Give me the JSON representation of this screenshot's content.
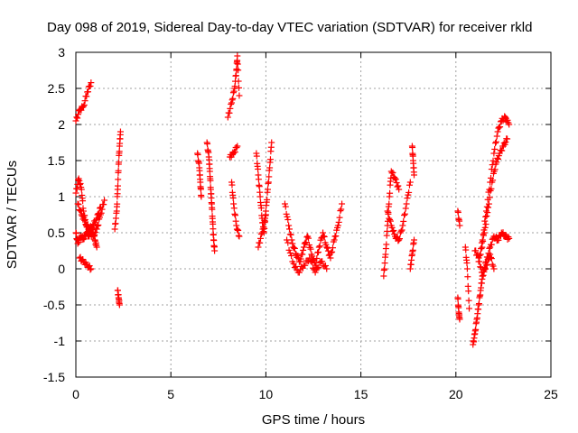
{
  "chart_data": {
    "type": "scatter",
    "title": "Day 098 of 2019, Sidereal Day-to-day VTEC variation (SDTVAR) for receiver rkld",
    "xlabel": "GPS time / hours",
    "ylabel": "SDTVAR / TECUs",
    "xlim": [
      0,
      25
    ],
    "ylim": [
      -1.5,
      3
    ],
    "xticks": [
      0,
      5,
      10,
      15,
      20,
      25
    ],
    "yticks": [
      -1.5,
      -1,
      -0.5,
      0,
      0.5,
      1,
      1.5,
      2,
      2.5,
      3
    ],
    "xtick_labels": [
      "0",
      "5",
      "10",
      "15",
      "20",
      "25"
    ],
    "ytick_labels": [
      "-1.5",
      "-1",
      "-0.5",
      "0",
      "0.5",
      "1",
      "1.5",
      "2",
      "2.5",
      "3"
    ],
    "grid": true,
    "marker": "+",
    "color": "#ff0000",
    "series": [
      {
        "segments": [
          [
            [
              0.0,
              2.05
            ],
            [
              0.2,
              2.2
            ],
            [
              0.4,
              2.25
            ],
            [
              0.6,
              2.45
            ],
            [
              0.8,
              2.58
            ]
          ],
          [
            [
              0.0,
              1.05
            ],
            [
              0.15,
              1.25
            ],
            [
              0.3,
              1.1
            ],
            [
              0.4,
              0.8
            ],
            [
              0.55,
              0.6
            ],
            [
              0.7,
              0.5
            ],
            [
              0.9,
              0.45
            ],
            [
              1.1,
              0.55
            ],
            [
              1.3,
              0.75
            ],
            [
              1.5,
              0.95
            ]
          ],
          [
            [
              0.0,
              0.5
            ],
            [
              0.1,
              0.35
            ],
            [
              0.25,
              0.45
            ],
            [
              0.4,
              0.42
            ],
            [
              0.55,
              0.5
            ],
            [
              0.7,
              0.45
            ],
            [
              0.85,
              0.55
            ],
            [
              1.0,
              0.4
            ],
            [
              1.1,
              0.3
            ]
          ],
          [
            [
              0.2,
              0.15
            ],
            [
              0.4,
              0.1
            ],
            [
              0.6,
              0.05
            ],
            [
              0.8,
              0.0
            ]
          ],
          [
            [
              0.1,
              0.9
            ],
            [
              0.3,
              0.75
            ],
            [
              0.5,
              0.65
            ],
            [
              0.7,
              0.55
            ],
            [
              0.9,
              0.6
            ],
            [
              1.1,
              0.7
            ],
            [
              1.3,
              0.85
            ]
          ],
          [
            [
              2.05,
              0.55
            ],
            [
              2.15,
              0.8
            ],
            [
              2.2,
              1.1
            ],
            [
              2.25,
              1.45
            ],
            [
              2.3,
              1.7
            ],
            [
              2.35,
              1.9
            ]
          ],
          [
            [
              2.2,
              -0.3
            ],
            [
              2.25,
              -0.4
            ],
            [
              2.3,
              -0.5
            ]
          ],
          [
            [
              6.4,
              1.6
            ],
            [
              6.5,
              1.4
            ],
            [
              6.55,
              1.2
            ],
            [
              6.6,
              1.0
            ]
          ],
          [
            [
              6.9,
              1.75
            ],
            [
              7.0,
              1.55
            ],
            [
              7.05,
              1.35
            ],
            [
              7.1,
              1.1
            ],
            [
              7.15,
              0.9
            ],
            [
              7.2,
              0.65
            ],
            [
              7.25,
              0.4
            ],
            [
              7.3,
              0.25
            ]
          ],
          [
            [
              8.0,
              2.1
            ],
            [
              8.2,
              2.3
            ],
            [
              8.35,
              2.5
            ],
            [
              8.45,
              2.75
            ],
            [
              8.5,
              2.95
            ],
            [
              8.6,
              2.4
            ]
          ],
          [
            [
              8.1,
              1.55
            ],
            [
              8.3,
              1.6
            ],
            [
              8.5,
              1.7
            ]
          ],
          [
            [
              8.2,
              1.2
            ],
            [
              8.3,
              0.9
            ],
            [
              8.45,
              0.6
            ],
            [
              8.6,
              0.45
            ]
          ],
          [
            [
              9.5,
              1.6
            ],
            [
              9.6,
              1.3
            ],
            [
              9.7,
              1.0
            ],
            [
              9.8,
              0.7
            ],
            [
              9.9,
              0.5
            ],
            [
              10.0,
              0.8
            ],
            [
              10.1,
              1.1
            ],
            [
              10.2,
              1.4
            ],
            [
              10.3,
              1.75
            ]
          ],
          [
            [
              9.6,
              0.3
            ],
            [
              9.8,
              0.5
            ],
            [
              10.0,
              0.75
            ]
          ],
          [
            [
              11.0,
              0.9
            ],
            [
              11.2,
              0.6
            ],
            [
              11.4,
              0.35
            ],
            [
              11.6,
              0.2
            ],
            [
              11.8,
              0.1
            ],
            [
              12.0,
              0.3
            ],
            [
              12.2,
              0.45
            ],
            [
              12.4,
              0.2
            ],
            [
              12.6,
              0.05
            ],
            [
              12.8,
              0.3
            ],
            [
              13.0,
              0.5
            ],
            [
              13.2,
              0.3
            ],
            [
              13.4,
              0.15
            ],
            [
              13.6,
              0.4
            ],
            [
              13.8,
              0.6
            ],
            [
              14.0,
              0.9
            ]
          ],
          [
            [
              11.1,
              0.4
            ],
            [
              11.4,
              0.1
            ],
            [
              11.7,
              -0.05
            ],
            [
              12.0,
              0.05
            ],
            [
              12.3,
              0.15
            ],
            [
              12.6,
              -0.05
            ],
            [
              12.9,
              0.1
            ],
            [
              13.2,
              0.0
            ]
          ],
          [
            [
              16.2,
              -0.1
            ],
            [
              16.3,
              0.2
            ],
            [
              16.4,
              0.6
            ],
            [
              16.5,
              1.0
            ],
            [
              16.6,
              1.35
            ],
            [
              16.8,
              1.25
            ],
            [
              17.0,
              1.1
            ]
          ],
          [
            [
              16.4,
              0.8
            ],
            [
              16.6,
              0.6
            ],
            [
              16.8,
              0.45
            ],
            [
              17.0,
              0.4
            ],
            [
              17.2,
              0.6
            ],
            [
              17.4,
              0.9
            ],
            [
              17.6,
              1.2
            ]
          ],
          [
            [
              17.7,
              1.7
            ],
            [
              17.75,
              1.5
            ],
            [
              17.8,
              1.3
            ]
          ],
          [
            [
              17.6,
              0.0
            ],
            [
              17.7,
              0.2
            ],
            [
              17.8,
              0.4
            ]
          ],
          [
            [
              20.1,
              0.8
            ],
            [
              20.2,
              0.6
            ]
          ],
          [
            [
              20.1,
              -0.4
            ],
            [
              20.15,
              -0.6
            ],
            [
              20.2,
              -0.7
            ]
          ],
          [
            [
              20.5,
              0.3
            ],
            [
              20.6,
              0.0
            ],
            [
              20.7,
              -0.55
            ]
          ],
          [
            [
              20.9,
              -1.05
            ],
            [
              21.0,
              -0.9
            ],
            [
              21.1,
              -0.7
            ],
            [
              21.2,
              -0.5
            ],
            [
              21.3,
              -0.3
            ],
            [
              21.4,
              -0.1
            ],
            [
              21.6,
              0.1
            ],
            [
              21.8,
              0.3
            ],
            [
              22.0,
              0.45
            ],
            [
              22.2,
              0.4
            ],
            [
              22.4,
              0.5
            ],
            [
              22.6,
              0.45
            ],
            [
              22.8,
              0.42
            ]
          ],
          [
            [
              21.2,
              0.1
            ],
            [
              21.4,
              0.4
            ],
            [
              21.6,
              0.8
            ],
            [
              21.8,
              1.2
            ],
            [
              22.0,
              1.6
            ],
            [
              22.2,
              1.9
            ],
            [
              22.4,
              2.05
            ],
            [
              22.6,
              2.1
            ],
            [
              22.8,
              2.0
            ]
          ],
          [
            [
              21.3,
              0.2
            ],
            [
              21.5,
              0.5
            ],
            [
              21.7,
              0.85
            ],
            [
              21.9,
              1.2
            ],
            [
              22.1,
              1.45
            ],
            [
              22.3,
              1.6
            ],
            [
              22.5,
              1.7
            ],
            [
              22.7,
              1.8
            ]
          ],
          [
            [
              21.0,
              0.25
            ],
            [
              21.2,
              0.15
            ],
            [
              21.4,
              -0.1
            ],
            [
              21.6,
              0.05
            ],
            [
              21.8,
              0.2
            ],
            [
              22.0,
              0.0
            ]
          ]
        ]
      }
    ]
  }
}
